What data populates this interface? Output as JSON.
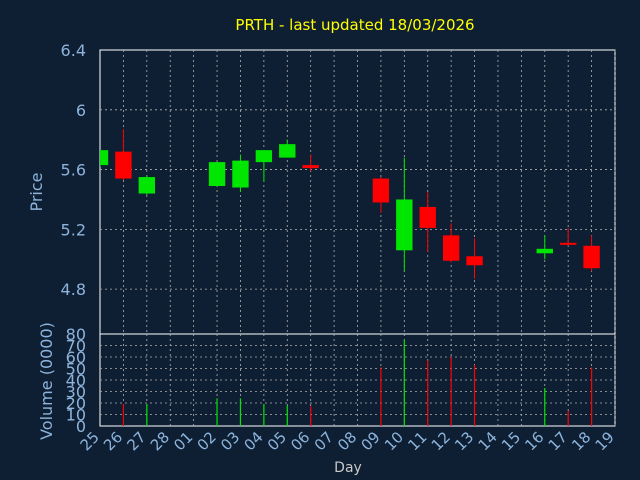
{
  "chart_data": {
    "type": "candlestick",
    "title": "PRTH - last updated 18/03/2026",
    "xlabel": "Day",
    "price_panel": {
      "ylabel": "Price",
      "ylim": [
        4.5,
        6.4
      ],
      "yticks": [
        "6.4",
        "6",
        "5.6",
        "5.2",
        "4.8"
      ],
      "ytick_values": [
        6.4,
        6.0,
        5.6,
        5.2,
        4.8
      ]
    },
    "volume_panel": {
      "ylabel": "Volume (0000)",
      "ylim": [
        0,
        80
      ],
      "yticks": [
        "80",
        "70",
        "60",
        "50",
        "40",
        "30",
        "20",
        "10",
        "0"
      ],
      "ytick_values": [
        80,
        70,
        60,
        50,
        40,
        30,
        20,
        10,
        0
      ]
    },
    "days": [
      "25",
      "26",
      "27",
      "28",
      "01",
      "02",
      "03",
      "04",
      "05",
      "06",
      "07",
      "08",
      "09",
      "10",
      "11",
      "12",
      "13",
      "14",
      "15",
      "16",
      "17",
      "18",
      "19"
    ],
    "candles": [
      {
        "day_index": 0,
        "open": 5.63,
        "close": 5.73,
        "high": 5.73,
        "low": 5.62,
        "volume": 0
      },
      {
        "day_index": 1,
        "open": 5.72,
        "close": 5.54,
        "high": 5.87,
        "low": 5.53,
        "volume": 19
      },
      {
        "day_index": 2,
        "open": 5.44,
        "close": 5.55,
        "high": 5.56,
        "low": 5.43,
        "volume": 19
      },
      {
        "day_index": 5,
        "open": 5.49,
        "close": 5.65,
        "high": 5.65,
        "low": 5.49,
        "volume": 24
      },
      {
        "day_index": 6,
        "open": 5.48,
        "close": 5.66,
        "high": 5.7,
        "low": 5.45,
        "volume": 24
      },
      {
        "day_index": 7,
        "open": 5.65,
        "close": 5.73,
        "high": 5.73,
        "low": 5.52,
        "volume": 19
      },
      {
        "day_index": 8,
        "open": 5.68,
        "close": 5.77,
        "high": 5.8,
        "low": 5.68,
        "volume": 18
      },
      {
        "day_index": 9,
        "open": 5.63,
        "close": 5.61,
        "high": 5.7,
        "low": 5.59,
        "volume": 17
      },
      {
        "day_index": 12,
        "open": 5.54,
        "close": 5.38,
        "high": 5.55,
        "low": 5.31,
        "volume": 51
      },
      {
        "day_index": 13,
        "open": 5.06,
        "close": 5.4,
        "high": 5.68,
        "low": 4.92,
        "volume": 75
      },
      {
        "day_index": 14,
        "open": 5.35,
        "close": 5.21,
        "high": 5.45,
        "low": 5.05,
        "volume": 57
      },
      {
        "day_index": 15,
        "open": 5.16,
        "close": 4.99,
        "high": 5.24,
        "low": 4.98,
        "volume": 60
      },
      {
        "day_index": 16,
        "open": 5.02,
        "close": 4.96,
        "high": 5.14,
        "low": 4.87,
        "volume": 53
      },
      {
        "day_index": 19,
        "open": 5.04,
        "close": 5.07,
        "high": 5.16,
        "low": 5.0,
        "volume": 33
      },
      {
        "day_index": 20,
        "open": 5.11,
        "close": 5.1,
        "high": 5.21,
        "low": 5.09,
        "volume": 13
      },
      {
        "day_index": 21,
        "open": 5.09,
        "close": 4.94,
        "high": 5.16,
        "low": 4.92,
        "volume": 51
      }
    ]
  },
  "colors": {
    "background": "#0f1f33",
    "title": "#ffff00",
    "axis_text": "#8cb4dc",
    "label_text": "#c8c8c8",
    "up": "#00e600",
    "down": "#ff0000",
    "grid": "#b0b0b0",
    "frame": "#ffffff"
  }
}
